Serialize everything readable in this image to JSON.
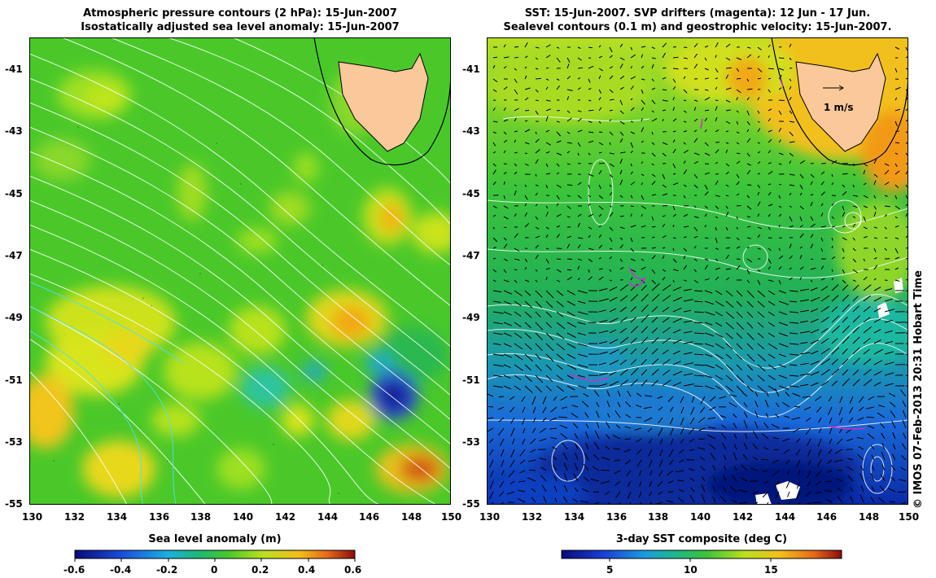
{
  "left_panel": {
    "title_line1": "Atmospheric pressure contours (2 hPa): 15-Jun-2007",
    "title_line2": "Isostatically adjusted sea level anomaly: 15-Jun-2007",
    "x_ticks": [
      "130",
      "132",
      "134",
      "136",
      "138",
      "140",
      "142",
      "144",
      "146",
      "148",
      "150"
    ],
    "y_ticks": [
      "-41",
      "-43",
      "-45",
      "-47",
      "-49",
      "-51",
      "-53",
      "-55"
    ],
    "colorbar_label": "Sea level anomaly (m)",
    "colorbar_ticks": [
      "-0.6",
      "-0.4",
      "-0.2",
      "0",
      "0.2",
      "0.4",
      "0.6"
    ]
  },
  "right_panel": {
    "title_line1": "SST: 15-Jun-2007. SVP drifters (magenta): 12 Jun - 17 Jun.",
    "title_line2": "Sealevel contours (0.1 m) and geostrophic velocity: 15-Jun-2007.",
    "x_ticks": [
      "130",
      "132",
      "134",
      "136",
      "138",
      "140",
      "142",
      "144",
      "146",
      "148",
      "150"
    ],
    "y_ticks": [
      "-41",
      "-43",
      "-45",
      "-47",
      "-49",
      "-51",
      "-53",
      "-55"
    ],
    "velocity_scale_label": "1 m/s",
    "colorbar_label": "3-day SST composite (deg C)",
    "colorbar_ticks": [
      "5",
      "10",
      "15"
    ]
  },
  "credit": "© IMOS 07-Feb-2013 20:31 Hobart Time",
  "colors": {
    "land": "#fbc999",
    "slope_contour": "#000000",
    "pressure_contour": "#ffffff",
    "drifter": "#d02ad0"
  }
}
